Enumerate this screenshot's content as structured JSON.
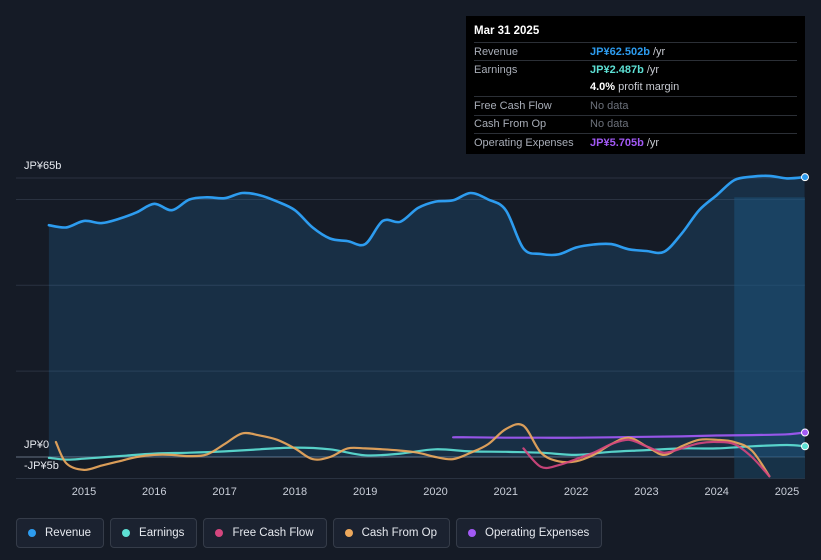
{
  "tooltip": {
    "date": "Mar 31 2025",
    "rows": {
      "revenue": {
        "label": "Revenue",
        "value": "JP¥62.502b",
        "unit": "/yr",
        "color": "#2d9cef"
      },
      "earnings": {
        "label": "Earnings",
        "value": "JP¥2.487b",
        "unit": "/yr",
        "color": "#5de0d4"
      },
      "margin": {
        "value": "4.0%",
        "unit": "profit margin"
      },
      "fcf": {
        "label": "Free Cash Flow",
        "value": "No data"
      },
      "cfo": {
        "label": "Cash From Op",
        "value": "No data"
      },
      "opex": {
        "label": "Operating Expenses",
        "value": "JP¥5.705b",
        "unit": "/yr",
        "color": "#a259f5"
      }
    }
  },
  "legend": [
    {
      "label": "Revenue",
      "color": "#2d9cef"
    },
    {
      "label": "Earnings",
      "color": "#5de0d4"
    },
    {
      "label": "Free Cash Flow",
      "color": "#d4467e"
    },
    {
      "label": "Cash From Op",
      "color": "#eca85c"
    },
    {
      "label": "Operating Expenses",
      "color": "#a259f5"
    }
  ],
  "chart_data": {
    "type": "line",
    "title": "",
    "xlabel": "",
    "ylabel": "",
    "ylim": [
      -5,
      65
    ],
    "y_tick_labels": [
      "JP¥65b",
      "JP¥0",
      "-JP¥5b"
    ],
    "x_tick_labels": [
      "2015",
      "2016",
      "2017",
      "2018",
      "2019",
      "2020",
      "2021",
      "2022",
      "2023",
      "2024",
      "2025"
    ],
    "x_ticks": [
      2015,
      2016,
      2017,
      2018,
      2019,
      2020,
      2021,
      2022,
      2023,
      2024,
      2025
    ],
    "xlim": [
      2014.45,
      2025.25
    ],
    "forecast_start": 2024.25,
    "series": [
      {
        "name": "Revenue",
        "color": "#2d9cef",
        "fill": true,
        "x": [
          2014.5,
          2014.75,
          2015,
          2015.25,
          2015.5,
          2015.75,
          2016,
          2016.25,
          2016.5,
          2016.75,
          2017,
          2017.25,
          2017.5,
          2017.75,
          2018,
          2018.25,
          2018.5,
          2018.75,
          2019,
          2019.25,
          2019.5,
          2019.75,
          2020,
          2020.25,
          2020.5,
          2020.75,
          2021,
          2021.25,
          2021.5,
          2021.75,
          2022,
          2022.25,
          2022.5,
          2022.75,
          2023,
          2023.25,
          2023.5,
          2023.75,
          2024,
          2024.25,
          2024.5,
          2024.75,
          2025,
          2025.25
        ],
        "values": [
          54,
          53.5,
          55,
          54.5,
          55.5,
          57,
          59,
          57.5,
          60,
          60.5,
          60.3,
          61.5,
          61,
          59.5,
          57.5,
          53.5,
          50.9,
          50.3,
          49.6,
          55,
          54.8,
          58,
          59.5,
          59.8,
          61.5,
          60,
          57.5,
          48.6,
          47.3,
          47.2,
          48.8,
          49.5,
          49.6,
          48.4,
          48,
          47.8,
          52,
          57.5,
          61,
          64.5,
          65.3,
          65.5,
          64.9,
          65.2
        ]
      },
      {
        "name": "Earnings",
        "color": "#5de0d4",
        "fill": false,
        "x": [
          2014.5,
          2014.75,
          2015,
          2015.5,
          2016,
          2016.5,
          2017,
          2017.5,
          2018,
          2018.5,
          2019,
          2019.5,
          2020,
          2020.5,
          2021,
          2021.5,
          2022,
          2022.5,
          2023,
          2023.5,
          2024,
          2024.5,
          2025,
          2025.25
        ],
        "values": [
          -0.2,
          -0.6,
          -0.4,
          0.2,
          0.8,
          1.0,
          1.3,
          1.8,
          2.2,
          1.8,
          0.4,
          0.8,
          1.8,
          1.3,
          1.2,
          1.0,
          0.5,
          1.2,
          1.6,
          2.0,
          2.0,
          2.5,
          2.8,
          2.5
        ]
      },
      {
        "name": "Free Cash Flow",
        "color": "#d4467e",
        "fill": false,
        "x": [
          2021.25,
          2021.5,
          2021.75,
          2022,
          2022.25,
          2022.5,
          2022.75,
          2023,
          2023.25,
          2023.5,
          2023.75,
          2024,
          2024.25,
          2024.5,
          2024.75
        ],
        "values": [
          2,
          -2.3,
          -1.9,
          -0.5,
          1.0,
          3.0,
          4.0,
          2.5,
          1.0,
          2.0,
          3.2,
          3.5,
          3.0,
          0,
          -4.5
        ]
      },
      {
        "name": "Cash From Op",
        "color": "#eca85c",
        "fill": false,
        "x": [
          2014.6,
          2014.75,
          2015,
          2015.25,
          2015.5,
          2015.75,
          2016,
          2016.25,
          2016.5,
          2016.75,
          2017,
          2017.25,
          2017.5,
          2017.75,
          2018,
          2018.25,
          2018.5,
          2018.75,
          2019,
          2019.25,
          2019.5,
          2019.75,
          2020,
          2020.25,
          2020.5,
          2020.75,
          2021,
          2021.25,
          2021.5,
          2021.75,
          2022,
          2022.25,
          2022.5,
          2022.75,
          2023,
          2023.25,
          2023.5,
          2023.75,
          2024,
          2024.25,
          2024.5,
          2024.75
        ],
        "values": [
          3.5,
          -1.5,
          -3,
          -2,
          -1,
          0,
          0.5,
          0.5,
          0.2,
          0.6,
          3,
          5.5,
          5,
          4,
          2,
          -0.5,
          0,
          2,
          2,
          1.8,
          1.5,
          1,
          0,
          -0.5,
          1,
          3,
          6.5,
          7.3,
          1,
          -1,
          -1,
          0.5,
          3,
          4.5,
          2.5,
          0.5,
          2.5,
          4,
          4,
          3.5,
          1.5,
          -4.5
        ]
      },
      {
        "name": "Operating Expenses",
        "color": "#a259f5",
        "fill": false,
        "x": [
          2020.25,
          2020.5,
          2021,
          2021.5,
          2022,
          2022.5,
          2023,
          2023.5,
          2024,
          2024.5,
          2025,
          2025.25
        ],
        "values": [
          4.6,
          4.6,
          4.5,
          4.5,
          4.5,
          4.6,
          4.7,
          4.8,
          5.0,
          5.1,
          5.3,
          5.7
        ]
      }
    ]
  }
}
